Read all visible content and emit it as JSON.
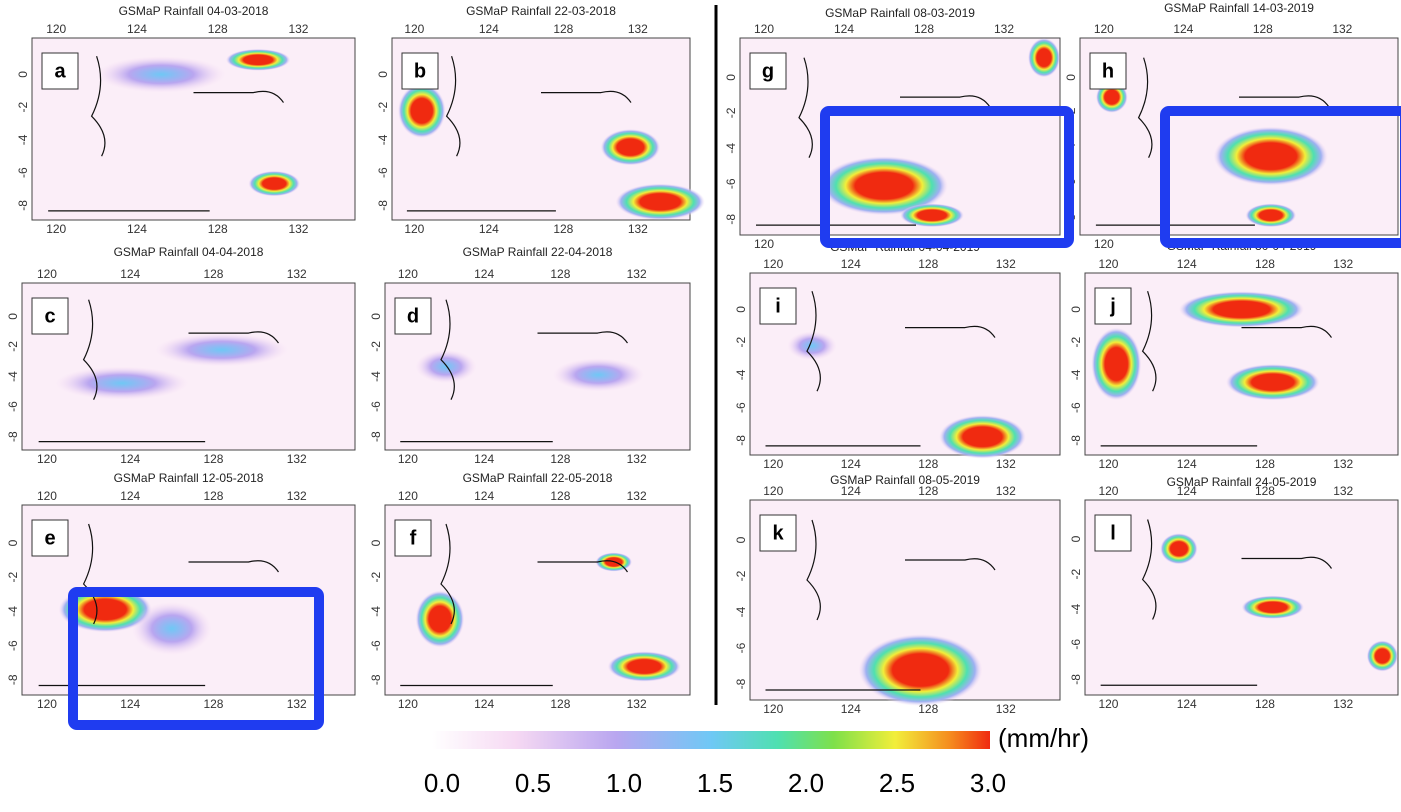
{
  "panels": [
    {
      "letter": "a",
      "title": "GSMaP Rainfall 04-03-2018"
    },
    {
      "letter": "b",
      "title": "GSMaP Rainfall 22-03-2018"
    },
    {
      "letter": "g",
      "title": "GSMaP Rainfall 08-03-2019"
    },
    {
      "letter": "h",
      "title": "GSMaP Rainfall 14-03-2019"
    },
    {
      "letter": "c",
      "title": "GSMaP Rainfall 04-04-2018"
    },
    {
      "letter": "d",
      "title": "GSMaP Rainfall 22-04-2018"
    },
    {
      "letter": "i",
      "title": "GSMaP Rainfall 04-04-2019"
    },
    {
      "letter": "j",
      "title": "GSMaP Rainfall 30-04-2019"
    },
    {
      "letter": "e",
      "title": "GSMaP Rainfall 12-05-2018"
    },
    {
      "letter": "f",
      "title": "GSMaP Rainfall 22-05-2018"
    },
    {
      "letter": "k",
      "title": "GSMaP Rainfall 08-05-2019"
    },
    {
      "letter": "l",
      "title": "GSMaP Rainfall 24-05-2019"
    }
  ],
  "lon_ticks": [
    "120",
    "124",
    "128",
    "132"
  ],
  "lat_ticks": [
    "0",
    "-2",
    "-4",
    "-6",
    "-8"
  ],
  "colorbar": {
    "unit": "(mm/hr)",
    "ticks": [
      "0.0",
      "0.5",
      "1.0",
      "1.5",
      "2.0",
      "2.5",
      "3.0"
    ]
  }
}
